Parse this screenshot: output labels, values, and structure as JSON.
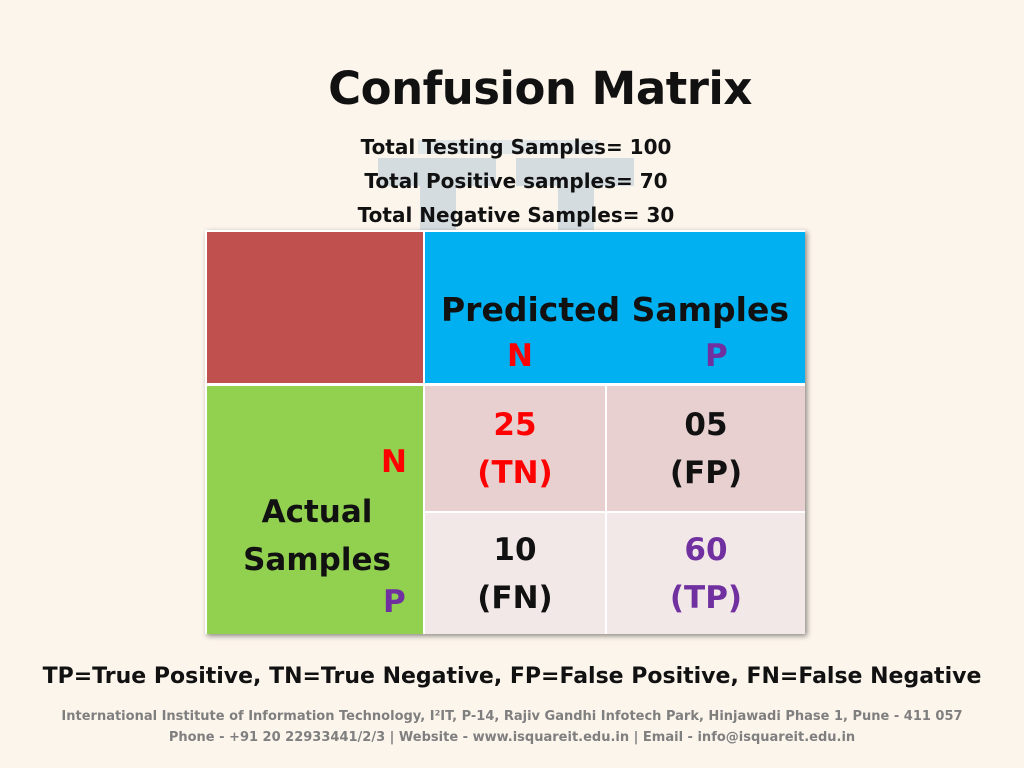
{
  "slide": {
    "title": "Confusion Matrix",
    "stats": [
      "Total Testing Samples= 100",
      "Total Positive samples= 70",
      "Total Negative Samples= 30"
    ]
  },
  "matrix": {
    "predicted_header": "Predicted Samples",
    "predicted_n": "N",
    "predicted_p": "P",
    "actual_n": "N",
    "actual_line1": "Actual",
    "actual_line2": "Samples",
    "actual_p": "P",
    "tn_value": "25",
    "tn_label": "(TN)",
    "fp_value": "05",
    "fp_label": "(FP)",
    "fn_value": "10",
    "fn_label": "(FN)",
    "tp_value": "60",
    "tp_label": "(TP)"
  },
  "legend": "TP=True Positive, TN=True Negative, FP=False Positive, FN=False Negative",
  "footer": {
    "line1": "International Institute of Information Technology, I²IT, P-14, Rajiv Gandhi Infotech Park, Hinjawadi Phase 1, Pune - 411 057",
    "line2": "Phone - +91 20 22933441/2/3 | Website - www.isquareit.edu.in | Email - info@isquareit.edu.in"
  },
  "colors": {
    "background": "#fcf5ec",
    "corner": "#bf504e",
    "predicted_header": "#00b0f0",
    "actual_header": "#92d050",
    "row_n": "#e8d0d0",
    "row_p": "#f3e8e8",
    "negative_accent": "#ff0000",
    "positive_accent": "#7030a0"
  }
}
